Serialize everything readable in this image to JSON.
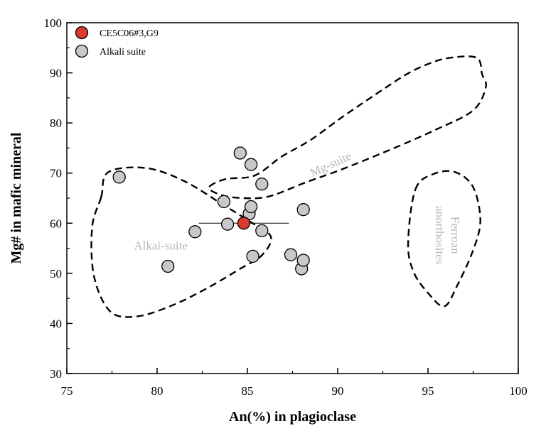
{
  "chart_data": {
    "type": "scatter",
    "xlabel": "An(%) in plagioclase",
    "ylabel": "Mg# in mafic mineral",
    "xlim": [
      75,
      100
    ],
    "ylim": [
      30,
      100
    ],
    "xticks": [
      75,
      80,
      85,
      90,
      95,
      100
    ],
    "yticks": [
      30,
      40,
      50,
      60,
      70,
      80,
      90,
      100
    ],
    "grid": false,
    "legend_position": "top-left",
    "series": [
      {
        "name": "CE5C06#3,G9",
        "color": "#d93a2b",
        "points": [
          {
            "x": 84.8,
            "y": 60.0,
            "xerr": [
              82.3,
              87.3
            ]
          }
        ]
      },
      {
        "name": "Alkali suite",
        "color": "#c8c8c8",
        "points": [
          {
            "x": 77.9,
            "y": 69.2
          },
          {
            "x": 80.6,
            "y": 51.4
          },
          {
            "x": 82.1,
            "y": 58.3
          },
          {
            "x": 83.7,
            "y": 64.3
          },
          {
            "x": 83.9,
            "y": 59.8
          },
          {
            "x": 84.6,
            "y": 74.0
          },
          {
            "x": 85.1,
            "y": 61.9
          },
          {
            "x": 85.2,
            "y": 63.3
          },
          {
            "x": 85.2,
            "y": 71.7
          },
          {
            "x": 85.3,
            "y": 53.4
          },
          {
            "x": 85.8,
            "y": 58.5
          },
          {
            "x": 85.8,
            "y": 67.8
          },
          {
            "x": 87.4,
            "y": 53.7
          },
          {
            "x": 88.0,
            "y": 50.9
          },
          {
            "x": 88.1,
            "y": 52.6
          },
          {
            "x": 88.1,
            "y": 62.7
          }
        ]
      }
    ],
    "regions": [
      {
        "label": "Mg-suite",
        "label_at": {
          "x": 89.6,
          "y": 71.8
        },
        "label_rotate": -25,
        "outline": [
          [
            82.9,
            67.3
          ],
          [
            83.8,
            68.8
          ],
          [
            85.4,
            69.5
          ],
          [
            86.9,
            73.3
          ],
          [
            88.5,
            76.6
          ],
          [
            90.3,
            81.3
          ],
          [
            92.6,
            86.9
          ],
          [
            93.9,
            89.9
          ],
          [
            95.1,
            91.9
          ],
          [
            96.2,
            93.0
          ],
          [
            97.7,
            93.0
          ],
          [
            98.0,
            89.7
          ],
          [
            98.2,
            87.1
          ],
          [
            97.5,
            82.5
          ],
          [
            95.4,
            78.6
          ],
          [
            92.8,
            74.5
          ],
          [
            90.2,
            70.7
          ],
          [
            88.2,
            68.1
          ],
          [
            86.6,
            65.8
          ],
          [
            85.6,
            65.0
          ],
          [
            84.1,
            65.2
          ],
          [
            83.2,
            66.1
          ],
          [
            82.9,
            67.3
          ]
        ]
      },
      {
        "label": "Alkai-suite",
        "label_at": {
          "x": 80.2,
          "y": 55.6
        },
        "label_rotate": 0,
        "outline": [
          [
            76.9,
            65.2
          ],
          [
            77.3,
            70.2
          ],
          [
            79.4,
            71.0
          ],
          [
            81.5,
            68.4
          ],
          [
            83.6,
            63.8
          ],
          [
            85.2,
            60.2
          ],
          [
            86.3,
            57.3
          ],
          [
            85.8,
            53.6
          ],
          [
            84.6,
            50.9
          ],
          [
            82.8,
            47.1
          ],
          [
            80.9,
            43.7
          ],
          [
            78.9,
            41.4
          ],
          [
            77.4,
            42.4
          ],
          [
            76.5,
            49.5
          ],
          [
            76.4,
            59.2
          ],
          [
            76.9,
            65.2
          ]
        ]
      },
      {
        "label_lines": [
          "Ferroan",
          "anorthosites"
        ],
        "label_at": {
          "x": 96.1,
          "y": 57.6
        },
        "label_rotate": 90,
        "outline": [
          [
            94.3,
            66.7
          ],
          [
            95.3,
            69.8
          ],
          [
            96.5,
            70.2
          ],
          [
            97.5,
            67.2
          ],
          [
            97.9,
            60.6
          ],
          [
            97.5,
            54.6
          ],
          [
            96.6,
            47.4
          ],
          [
            95.9,
            43.4
          ],
          [
            95.0,
            46.1
          ],
          [
            94.2,
            50.3
          ],
          [
            93.9,
            56.1
          ],
          [
            94.3,
            66.7
          ]
        ]
      }
    ]
  }
}
